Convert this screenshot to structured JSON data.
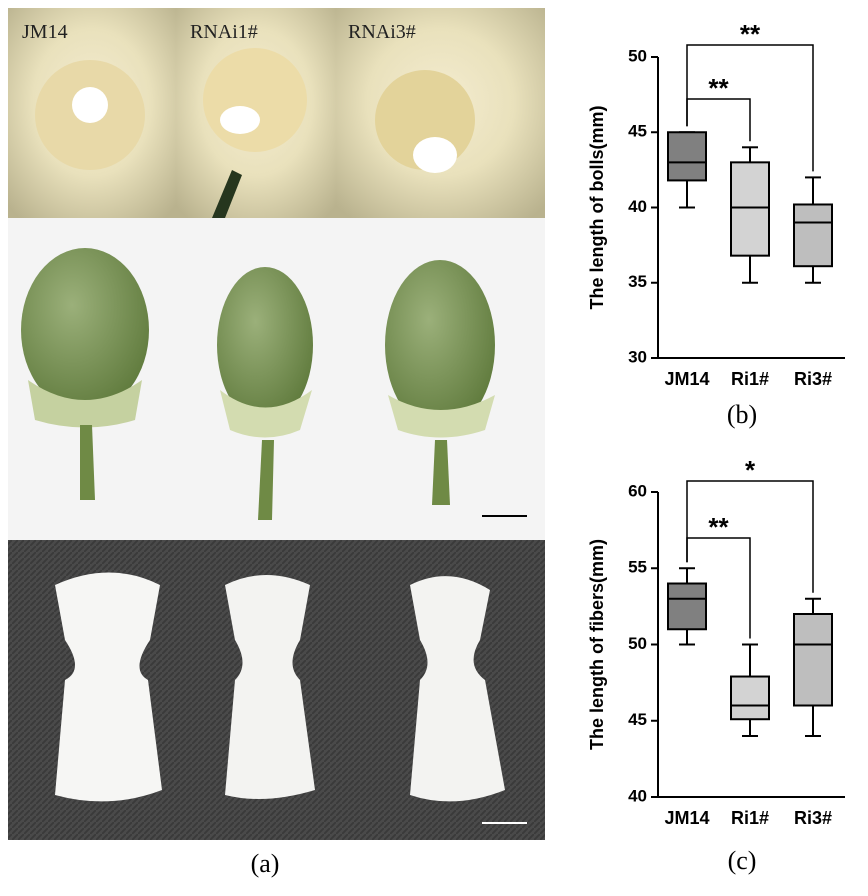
{
  "figure": {
    "photo_labels": [
      "JM14",
      "RNAi1#",
      "RNAi3#"
    ],
    "panel_label": "(a)"
  },
  "chart_data": [
    {
      "type": "box",
      "panel_label": "(b)",
      "ylabel": "The length of bolls(mm)",
      "categories": [
        "JM14",
        "Ri1#",
        "Ri3#"
      ],
      "boxes": [
        {
          "min": 40,
          "q1": 41.8,
          "median": 43,
          "q3": 45,
          "max": 45,
          "color": "#808080"
        },
        {
          "min": 35,
          "q1": 36.8,
          "median": 40,
          "q3": 43,
          "max": 44,
          "color": "#d3d3d3"
        },
        {
          "min": 35,
          "q1": 36.1,
          "median": 39,
          "q3": 40.2,
          "max": 42,
          "color": "#bebebe"
        }
      ],
      "ylim": [
        30,
        50
      ],
      "yticks": [
        30,
        35,
        40,
        45,
        50
      ],
      "grid": false,
      "annotations": [
        "**",
        "**"
      ]
    },
    {
      "type": "box",
      "panel_label": "(c)",
      "ylabel": "The length of fibers(mm)",
      "categories": [
        "JM14",
        "Ri1#",
        "Ri3#"
      ],
      "boxes": [
        {
          "min": 50,
          "q1": 51,
          "median": 53,
          "q3": 54,
          "max": 55,
          "color": "#808080"
        },
        {
          "min": 44,
          "q1": 45.1,
          "median": 46,
          "q3": 47.9,
          "max": 50,
          "color": "#d3d3d3"
        },
        {
          "min": 44,
          "q1": 46,
          "median": 50,
          "q3": 52,
          "max": 53,
          "color": "#bebebe"
        }
      ],
      "ylim": [
        40,
        60
      ],
      "yticks": [
        40,
        45,
        50,
        55,
        60
      ],
      "grid": false,
      "annotations": [
        "*",
        "**"
      ]
    }
  ]
}
